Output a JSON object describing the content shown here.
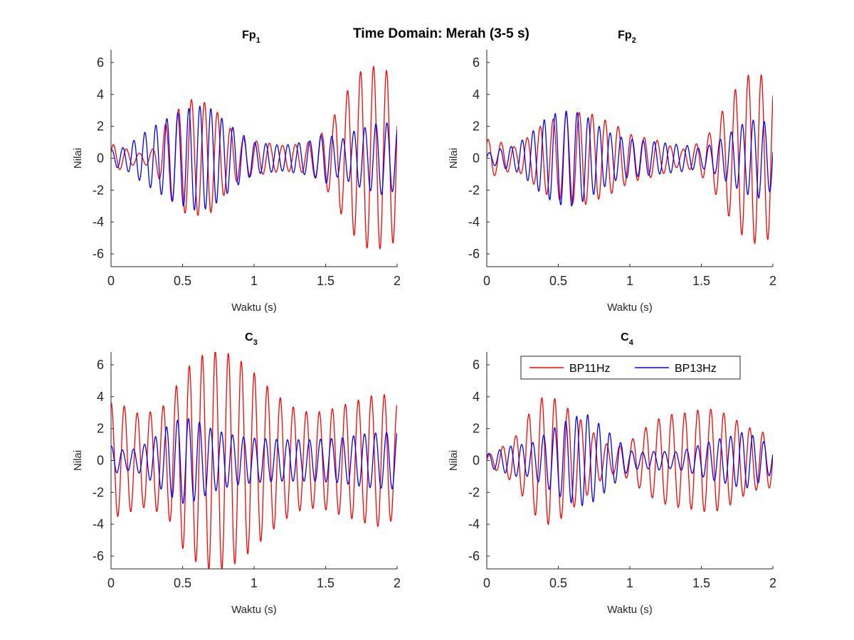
{
  "figure": {
    "suptitle": "Time Domain: Merah (3-5 s)"
  },
  "colors": {
    "series_1": "#ff0000",
    "series_2": "#0000ff",
    "axis": "#262626"
  },
  "legend": {
    "entries": [
      "BP11Hz",
      "BP13Hz"
    ],
    "location": "top, inside C4 axes",
    "orientation": "horizontal"
  },
  "chart_data": [
    {
      "type": "line",
      "title_main": "Fp",
      "title_sub": "1",
      "xlabel": "Waktu (s)",
      "ylabel": "Nilai",
      "xlim": [
        0,
        2
      ],
      "ylim": [
        -6.8,
        6.8
      ],
      "xticks": [
        0,
        0.5,
        1,
        1.5,
        2
      ],
      "xtick_labels": [
        "0",
        "0.5",
        "1",
        "1.5",
        "2"
      ],
      "yticks": [
        -6,
        -4,
        -2,
        0,
        2,
        4,
        6
      ],
      "ytick_labels": [
        "-6",
        "-4",
        "-2",
        "0",
        "2",
        "4",
        "6"
      ],
      "grid": false,
      "series": [
        {
          "name": "BP11Hz",
          "frequency_hz": 11,
          "envelope": [
            [
              0,
              0.9
            ],
            [
              0.1,
              0.6
            ],
            [
              0.2,
              0.3
            ],
            [
              0.3,
              0.6
            ],
            [
              0.4,
              2.5
            ],
            [
              0.55,
              3.7
            ],
            [
              0.7,
              3.4
            ],
            [
              0.8,
              2.2
            ],
            [
              0.9,
              1.3
            ],
            [
              1.0,
              1.1
            ],
            [
              1.2,
              0.8
            ],
            [
              1.35,
              0.9
            ],
            [
              1.45,
              1.3
            ],
            [
              1.55,
              2.5
            ],
            [
              1.65,
              4.2
            ],
            [
              1.75,
              5.5
            ],
            [
              1.85,
              5.8
            ],
            [
              2.0,
              5.2
            ]
          ]
        },
        {
          "name": "BP13Hz",
          "frequency_hz": 13,
          "envelope": [
            [
              0,
              0.5
            ],
            [
              0.1,
              0.7
            ],
            [
              0.2,
              1.4
            ],
            [
              0.3,
              2.0
            ],
            [
              0.45,
              2.8
            ],
            [
              0.6,
              3.3
            ],
            [
              0.7,
              3.1
            ],
            [
              0.8,
              2.3
            ],
            [
              0.9,
              1.6
            ],
            [
              1.0,
              1.0
            ],
            [
              1.2,
              0.8
            ],
            [
              1.4,
              1.1
            ],
            [
              1.5,
              1.6
            ],
            [
              1.6,
              1.1
            ],
            [
              1.7,
              1.7
            ],
            [
              1.8,
              2.0
            ],
            [
              1.9,
              2.3
            ],
            [
              2.0,
              2.0
            ]
          ]
        }
      ]
    },
    {
      "type": "line",
      "title_main": "Fp",
      "title_sub": "2",
      "xlabel": "Waktu (s)",
      "ylabel": "Nilai",
      "xlim": [
        0,
        2
      ],
      "ylim": [
        -6.8,
        6.8
      ],
      "xticks": [
        0,
        0.5,
        1,
        1.5,
        2
      ],
      "xtick_labels": [
        "0",
        "0.5",
        "1",
        "1.5",
        "2"
      ],
      "yticks": [
        -6,
        -4,
        -2,
        0,
        2,
        4,
        6
      ],
      "ytick_labels": [
        "-6",
        "-4",
        "-2",
        "0",
        "2",
        "4",
        "6"
      ],
      "grid": false,
      "series": [
        {
          "name": "BP11Hz",
          "frequency_hz": 11,
          "envelope": [
            [
              0,
              1.2
            ],
            [
              0.1,
              1.0
            ],
            [
              0.2,
              0.7
            ],
            [
              0.3,
              1.4
            ],
            [
              0.4,
              2.2
            ],
            [
              0.55,
              2.8
            ],
            [
              0.7,
              2.9
            ],
            [
              0.8,
              2.5
            ],
            [
              0.9,
              2.1
            ],
            [
              1.0,
              1.5
            ],
            [
              1.2,
              1.1
            ],
            [
              1.35,
              0.5
            ],
            [
              1.45,
              0.8
            ],
            [
              1.55,
              1.5
            ],
            [
              1.65,
              3.0
            ],
            [
              1.75,
              4.5
            ],
            [
              1.85,
              5.4
            ],
            [
              2.0,
              5.0
            ]
          ]
        },
        {
          "name": "BP13Hz",
          "frequency_hz": 13,
          "envelope": [
            [
              0,
              0.3
            ],
            [
              0.1,
              0.6
            ],
            [
              0.2,
              0.8
            ],
            [
              0.3,
              1.5
            ],
            [
              0.4,
              2.4
            ],
            [
              0.5,
              2.9
            ],
            [
              0.6,
              3.0
            ],
            [
              0.7,
              2.6
            ],
            [
              0.8,
              1.9
            ],
            [
              0.9,
              1.4
            ],
            [
              1.0,
              1.2
            ],
            [
              1.2,
              1.0
            ],
            [
              1.4,
              0.8
            ],
            [
              1.5,
              0.6
            ],
            [
              1.6,
              1.0
            ],
            [
              1.7,
              1.6
            ],
            [
              1.8,
              2.2
            ],
            [
              1.9,
              2.5
            ],
            [
              2.0,
              2.0
            ]
          ]
        }
      ]
    },
    {
      "type": "line",
      "title_main": "C",
      "title_sub": "3",
      "xlabel": "Waktu (s)",
      "ylabel": "Nilai",
      "xlim": [
        0,
        2
      ],
      "ylim": [
        -6.8,
        6.8
      ],
      "xticks": [
        0,
        0.5,
        1,
        1.5,
        2
      ],
      "xtick_labels": [
        "0",
        "0.5",
        "1",
        "1.5",
        "2"
      ],
      "yticks": [
        -6,
        -4,
        -2,
        0,
        2,
        4,
        6
      ],
      "ytick_labels": [
        "-6",
        "-4",
        "-2",
        "0",
        "2",
        "4",
        "6"
      ],
      "grid": false,
      "series": [
        {
          "name": "BP11Hz",
          "frequency_hz": 11,
          "envelope": [
            [
              0,
              3.6
            ],
            [
              0.1,
              3.4
            ],
            [
              0.2,
              2.9
            ],
            [
              0.3,
              3.1
            ],
            [
              0.4,
              3.6
            ],
            [
              0.5,
              5.5
            ],
            [
              0.6,
              6.4
            ],
            [
              0.7,
              6.9
            ],
            [
              0.8,
              6.8
            ],
            [
              0.9,
              6.3
            ],
            [
              1.0,
              5.5
            ],
            [
              1.1,
              4.6
            ],
            [
              1.2,
              3.8
            ],
            [
              1.3,
              3.2
            ],
            [
              1.4,
              3.0
            ],
            [
              1.5,
              3.1
            ],
            [
              1.6,
              3.4
            ],
            [
              1.7,
              3.7
            ],
            [
              1.8,
              4.0
            ],
            [
              1.9,
              4.2
            ],
            [
              2.0,
              3.5
            ]
          ]
        },
        {
          "name": "BP13Hz",
          "frequency_hz": 13,
          "envelope": [
            [
              0,
              0.9
            ],
            [
              0.1,
              0.6
            ],
            [
              0.2,
              0.8
            ],
            [
              0.3,
              1.4
            ],
            [
              0.4,
              2.2
            ],
            [
              0.5,
              2.7
            ],
            [
              0.6,
              2.5
            ],
            [
              0.7,
              2.0
            ],
            [
              0.8,
              1.7
            ],
            [
              0.9,
              1.5
            ],
            [
              1.0,
              1.4
            ],
            [
              1.2,
              1.3
            ],
            [
              1.4,
              1.3
            ],
            [
              1.6,
              1.4
            ],
            [
              1.8,
              1.7
            ],
            [
              2.0,
              1.8
            ]
          ]
        }
      ]
    },
    {
      "type": "line",
      "title_main": "C",
      "title_sub": "4",
      "xlabel": "Waktu (s)",
      "ylabel": "Nilai",
      "xlim": [
        0,
        2
      ],
      "ylim": [
        -6.8,
        6.8
      ],
      "xticks": [
        0,
        0.5,
        1,
        1.5,
        2
      ],
      "xtick_labels": [
        "0",
        "0.5",
        "1",
        "1.5",
        "2"
      ],
      "yticks": [
        -6,
        -4,
        -2,
        0,
        2,
        4,
        6
      ],
      "ytick_labels": [
        "-6",
        "-4",
        "-2",
        "0",
        "2",
        "4",
        "6"
      ],
      "grid": false,
      "series": [
        {
          "name": "BP11Hz",
          "frequency_hz": 11,
          "envelope": [
            [
              0,
              0.3
            ],
            [
              0.1,
              0.8
            ],
            [
              0.2,
              1.5
            ],
            [
              0.3,
              3.0
            ],
            [
              0.4,
              4.1
            ],
            [
              0.5,
              3.8
            ],
            [
              0.6,
              3.0
            ],
            [
              0.7,
              2.2
            ],
            [
              0.8,
              1.2
            ],
            [
              0.9,
              0.8
            ],
            [
              1.0,
              1.2
            ],
            [
              1.1,
              2.0
            ],
            [
              1.2,
              2.6
            ],
            [
              1.3,
              2.9
            ],
            [
              1.4,
              3.0
            ],
            [
              1.5,
              3.2
            ],
            [
              1.6,
              3.2
            ],
            [
              1.7,
              2.8
            ],
            [
              1.8,
              2.2
            ],
            [
              1.9,
              1.8
            ],
            [
              2.0,
              1.7
            ]
          ]
        },
        {
          "name": "BP13Hz",
          "frequency_hz": 13,
          "envelope": [
            [
              0,
              0.4
            ],
            [
              0.1,
              0.7
            ],
            [
              0.2,
              1.0
            ],
            [
              0.3,
              1.0
            ],
            [
              0.4,
              1.6
            ],
            [
              0.5,
              2.2
            ],
            [
              0.6,
              2.7
            ],
            [
              0.7,
              2.9
            ],
            [
              0.8,
              2.2
            ],
            [
              0.9,
              1.4
            ],
            [
              1.0,
              0.6
            ],
            [
              1.1,
              0.5
            ],
            [
              1.2,
              0.6
            ],
            [
              1.3,
              0.5
            ],
            [
              1.4,
              0.7
            ],
            [
              1.5,
              1.0
            ],
            [
              1.6,
              1.3
            ],
            [
              1.7,
              1.5
            ],
            [
              1.8,
              1.8
            ],
            [
              1.9,
              1.4
            ],
            [
              2.0,
              0.8
            ]
          ]
        }
      ]
    }
  ]
}
